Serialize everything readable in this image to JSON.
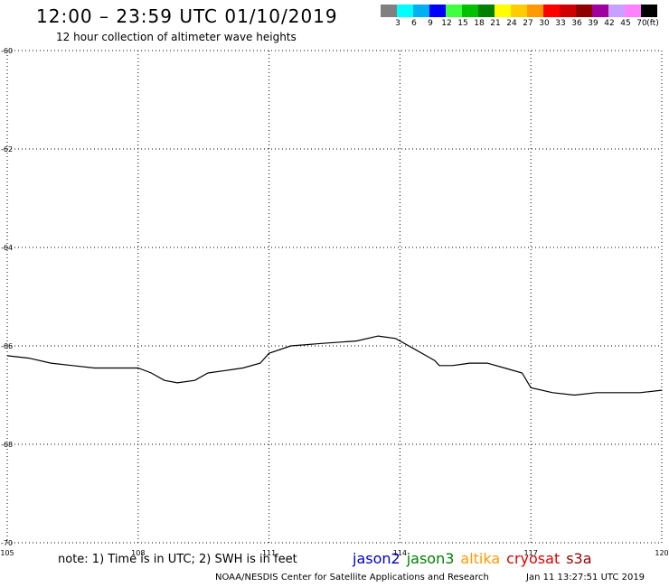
{
  "header": {
    "title": "12:00 – 23:59 UTC 01/10/2019",
    "subtitle": "12 hour collection of altimeter wave heights"
  },
  "legend": {
    "unit": "(ft)",
    "bins": [
      {
        "label": "3",
        "color": "#808080"
      },
      {
        "label": "6",
        "color": "#00ffff"
      },
      {
        "label": "9",
        "color": "#00b0f0"
      },
      {
        "label": "12",
        "color": "#0000ff"
      },
      {
        "label": "15",
        "color": "#40ff40"
      },
      {
        "label": "18",
        "color": "#00c000"
      },
      {
        "label": "21",
        "color": "#008000"
      },
      {
        "label": "24",
        "color": "#ffff00"
      },
      {
        "label": "27",
        "color": "#ffcc00"
      },
      {
        "label": "30",
        "color": "#ff9900"
      },
      {
        "label": "33",
        "color": "#ff0000"
      },
      {
        "label": "36",
        "color": "#d00000"
      },
      {
        "label": "39",
        "color": "#900000"
      },
      {
        "label": "42",
        "color": "#a000a0"
      },
      {
        "label": "45",
        "color": "#c8a0ff"
      },
      {
        "label": "70",
        "color": "#ff80ff"
      },
      {
        "label": "",
        "color": "#000000"
      }
    ]
  },
  "map": {
    "lon_range": [
      105,
      120
    ],
    "lat_range": [
      -70,
      -60
    ],
    "lon_ticks": [
      "105",
      "108",
      "111",
      "114",
      "117",
      "120"
    ],
    "lat_ticks": [
      "-60",
      "-62",
      "-64",
      "-66",
      "-68",
      "-70"
    ],
    "coastline_lonlat": [
      [
        105.0,
        -66.2
      ],
      [
        105.5,
        -66.25
      ],
      [
        106.0,
        -66.35
      ],
      [
        106.5,
        -66.4
      ],
      [
        107.0,
        -66.45
      ],
      [
        107.5,
        -66.45
      ],
      [
        108.0,
        -66.45
      ],
      [
        108.3,
        -66.55
      ],
      [
        108.6,
        -66.7
      ],
      [
        108.9,
        -66.75
      ],
      [
        109.3,
        -66.7
      ],
      [
        109.6,
        -66.55
      ],
      [
        110.0,
        -66.5
      ],
      [
        110.4,
        -66.45
      ],
      [
        110.8,
        -66.35
      ],
      [
        111.0,
        -66.15
      ],
      [
        111.5,
        -66.0
      ],
      [
        112.2,
        -65.95
      ],
      [
        113.0,
        -65.9
      ],
      [
        113.5,
        -65.8
      ],
      [
        113.9,
        -65.85
      ],
      [
        114.3,
        -66.05
      ],
      [
        114.6,
        -66.2
      ],
      [
        114.8,
        -66.3
      ],
      [
        114.9,
        -66.4
      ],
      [
        115.2,
        -66.4
      ],
      [
        115.6,
        -66.35
      ],
      [
        116.0,
        -66.35
      ],
      [
        116.4,
        -66.45
      ],
      [
        116.8,
        -66.55
      ],
      [
        117.0,
        -66.85
      ],
      [
        117.5,
        -66.95
      ],
      [
        118.0,
        -67.0
      ],
      [
        118.5,
        -66.95
      ],
      [
        119.0,
        -66.95
      ],
      [
        119.5,
        -66.95
      ],
      [
        120.0,
        -66.9
      ]
    ]
  },
  "footer": {
    "note": "note: 1) Time is in UTC; 2) SWH is in feet",
    "satellites": [
      {
        "label": "jason2",
        "color": "#0000cc"
      },
      {
        "label": "jason3",
        "color": "#008000"
      },
      {
        "label": "altika",
        "color": "#ff9900"
      },
      {
        "label": "cryosat",
        "color": "#dd0000"
      },
      {
        "label": "s3a",
        "color": "#990000"
      }
    ],
    "credit": "NOAA/NESDIS Center for Satellite Applications and Research",
    "timestamp": "Jan 11 13:27:51 UTC 2019"
  }
}
